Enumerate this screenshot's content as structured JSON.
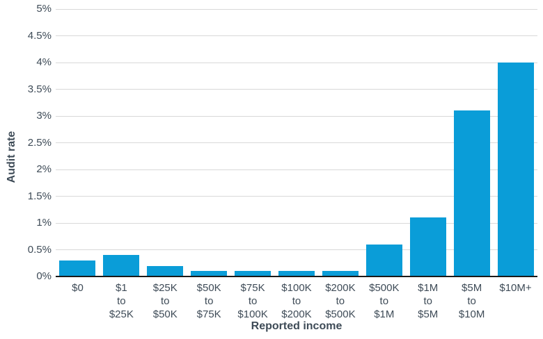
{
  "chart_data": {
    "type": "bar",
    "title": "",
    "xlabel": "Reported income",
    "ylabel": "Audit rate",
    "categories": [
      "$0",
      "$1 to $25K",
      "$25K to $50K",
      "$50K to $75K",
      "$75K to $100K",
      "$100K to $200K",
      "$200K to $500K",
      "$500K to $1M",
      "$1M to $5M",
      "$5M to $10M",
      "$10M+"
    ],
    "category_lines": [
      [
        "$0"
      ],
      [
        "$1",
        "to",
        "$25K"
      ],
      [
        "$25K",
        "to",
        "$50K"
      ],
      [
        "$50K",
        "to",
        "$75K"
      ],
      [
        "$75K",
        "to",
        "$100K"
      ],
      [
        "$100K",
        "to",
        "$200K"
      ],
      [
        "$200K",
        "to",
        "$500K"
      ],
      [
        "$500K",
        "to",
        "$1M"
      ],
      [
        "$1M",
        "to",
        "$5M"
      ],
      [
        "$5M",
        "to",
        "$10M"
      ],
      [
        "$10M+"
      ]
    ],
    "values": [
      0.3,
      0.4,
      0.2,
      0.1,
      0.1,
      0.1,
      0.1,
      0.6,
      1.1,
      3.1,
      4.0
    ],
    "ylim": [
      0,
      5
    ],
    "ytick_step": 0.5,
    "yticks": [
      "0%",
      "0.5%",
      "1%",
      "1.5%",
      "2%",
      "2.5%",
      "3%",
      "3.5%",
      "4%",
      "4.5%",
      "5%"
    ],
    "grid": "horizontal",
    "legend": "none"
  },
  "colors": {
    "bar": "#0a9dd8",
    "grid": "#d8d8d8",
    "axis": "#1a1a1a",
    "text": "#3e4b57",
    "background": "#ffffff"
  }
}
